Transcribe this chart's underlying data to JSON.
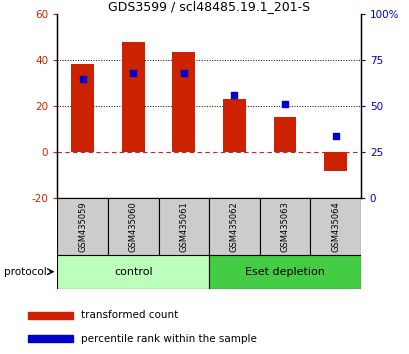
{
  "title": "GDS3599 / scl48485.19.1_201-S",
  "samples": [
    "GSM435059",
    "GSM435060",
    "GSM435061",
    "GSM435062",
    "GSM435063",
    "GSM435064"
  ],
  "red_bars": [
    38.5,
    48.0,
    43.5,
    23.0,
    15.5,
    -8.0
  ],
  "blue_squares_pct": [
    65,
    68,
    68,
    56,
    51,
    34
  ],
  "ylim_left": [
    -20,
    60
  ],
  "ylim_right": [
    0,
    100
  ],
  "yticks_left": [
    -20,
    0,
    20,
    40,
    60
  ],
  "yticks_right": [
    0,
    25,
    50,
    75,
    100
  ],
  "ytick_labels_right": [
    "0",
    "25",
    "50",
    "75",
    "100%"
  ],
  "ytick_labels_left": [
    "-20",
    "0",
    "20",
    "40",
    "60"
  ],
  "control_label": "control",
  "eset_label": "Eset depletion",
  "protocol_label": "protocol",
  "legend_red": "transformed count",
  "legend_blue": "percentile rank within the sample",
  "bar_color": "#cc2200",
  "square_color": "#0000cc",
  "control_bg": "#bbffbb",
  "eset_bg": "#44cc44",
  "sample_bg": "#cccccc",
  "bar_width": 0.45
}
